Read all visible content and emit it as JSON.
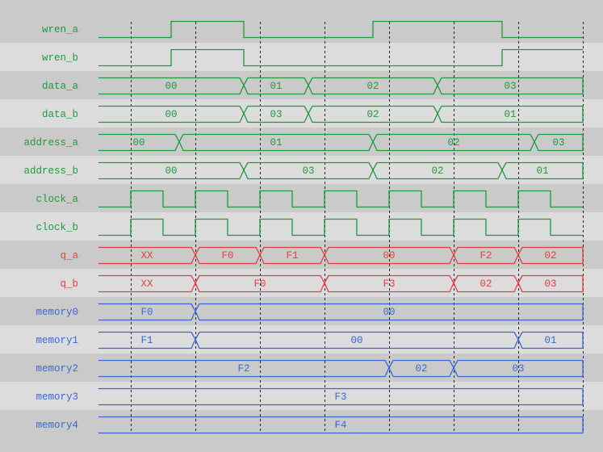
{
  "colors": {
    "background_dark": "#cacaca",
    "background_light": "#dcdcdc",
    "input_signal": "#1f9a3e",
    "output_signal": "#e04040",
    "memory_signal": "#3a66d8",
    "grid_line": "#222222"
  },
  "timeline": {
    "start": 0,
    "end": 75,
    "clock_edges": [
      5,
      15,
      25,
      35,
      45,
      55,
      65,
      75
    ]
  },
  "signals": [
    {
      "name": "wren_a",
      "kind": "bit",
      "group": "input",
      "initial": 0,
      "transitions": [
        11.25,
        22.5,
        42.5,
        62.5
      ]
    },
    {
      "name": "wren_b",
      "kind": "bit",
      "group": "input",
      "initial": 0,
      "transitions": [
        11.25,
        22.5,
        62.5
      ]
    },
    {
      "name": "data_a",
      "kind": "bus",
      "group": "input",
      "transitions": [
        22.5,
        32.5,
        52.5
      ],
      "values": [
        "00",
        "01",
        "02",
        "03"
      ]
    },
    {
      "name": "data_b",
      "kind": "bus",
      "group": "input",
      "transitions": [
        22.5,
        32.5,
        52.5
      ],
      "values": [
        "00",
        "03",
        "02",
        "01"
      ]
    },
    {
      "name": "address_a",
      "kind": "bus",
      "group": "input",
      "transitions": [
        12.5,
        42.5,
        67.5
      ],
      "values": [
        "00",
        "01",
        "02",
        "03"
      ]
    },
    {
      "name": "address_b",
      "kind": "bus",
      "group": "input",
      "transitions": [
        22.5,
        42.5,
        62.5
      ],
      "values": [
        "00",
        "03",
        "02",
        "01"
      ]
    },
    {
      "name": "clock_a",
      "kind": "clock",
      "group": "input",
      "first_rise": 5,
      "period": 10
    },
    {
      "name": "clock_b",
      "kind": "clock",
      "group": "input",
      "first_rise": 5,
      "period": 10
    },
    {
      "name": "q_a",
      "kind": "bus",
      "group": "output",
      "transitions": [
        15,
        25,
        35,
        55,
        65
      ],
      "values": [
        "XX",
        "F0",
        "F1",
        "00",
        "F2",
        "02"
      ]
    },
    {
      "name": "q_b",
      "kind": "bus",
      "group": "output",
      "transitions": [
        15,
        35,
        55,
        65
      ],
      "values": [
        "XX",
        "F0",
        "F3",
        "02",
        "03"
      ]
    },
    {
      "name": "memory0",
      "kind": "bus",
      "group": "memory",
      "transitions": [
        15
      ],
      "values": [
        "F0",
        "00"
      ]
    },
    {
      "name": "memory1",
      "kind": "bus",
      "group": "memory",
      "transitions": [
        15,
        65
      ],
      "values": [
        "F1",
        "00",
        "01"
      ]
    },
    {
      "name": "memory2",
      "kind": "bus",
      "group": "memory",
      "transitions": [
        45,
        55
      ],
      "values": [
        "F2",
        "02",
        "03"
      ]
    },
    {
      "name": "memory3",
      "kind": "bus",
      "group": "memory",
      "transitions": [],
      "values": [
        "F3"
      ]
    },
    {
      "name": "memory4",
      "kind": "bus",
      "group": "memory",
      "transitions": [],
      "values": [
        "F4"
      ]
    }
  ]
}
